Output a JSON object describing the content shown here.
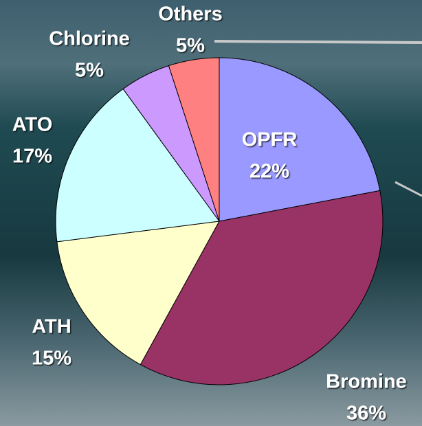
{
  "chart_data": {
    "type": "pie",
    "categories": [
      "OPFR",
      "Bromine",
      "ATH",
      "ATO",
      "Chlorine",
      "Others"
    ],
    "values": [
      22,
      36,
      15,
      17,
      5,
      5
    ],
    "value_labels": [
      "22%",
      "36%",
      "15%",
      "17%",
      "5%",
      "5%"
    ],
    "colors": [
      "#9999ff",
      "#993366",
      "#ffffcc",
      "#ccffff",
      "#cc99ff",
      "#ff8080"
    ]
  }
}
